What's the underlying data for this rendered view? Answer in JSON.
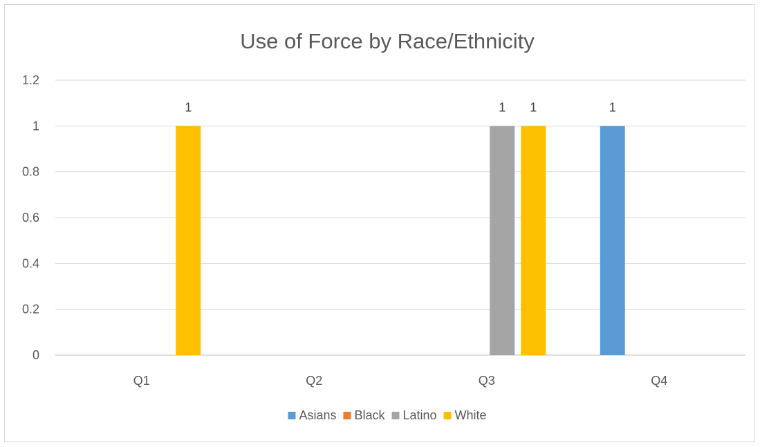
{
  "chart_data": {
    "type": "bar",
    "title": "Use of Force by Race/Ethnicity",
    "xlabel": "",
    "ylabel": "",
    "categories": [
      "Q1",
      "Q2",
      "Q3",
      "Q4"
    ],
    "ylim": [
      0,
      1.2
    ],
    "yticks": [
      "0",
      "0.2",
      "0.4",
      "0.6",
      "0.8",
      "1",
      "1.2"
    ],
    "grid": true,
    "legend_position": "bottom",
    "series": [
      {
        "name": "Asians",
        "color": "#5B9BD5",
        "values": [
          0,
          0,
          0,
          1
        ]
      },
      {
        "name": "Black",
        "color": "#ED7D31",
        "values": [
          0,
          0,
          0,
          0
        ]
      },
      {
        "name": "Latino",
        "color": "#A5A5A5",
        "values": [
          0,
          0,
          1,
          0
        ]
      },
      {
        "name": "White",
        "color": "#FFC000",
        "values": [
          1,
          0,
          1,
          0
        ]
      }
    ]
  }
}
